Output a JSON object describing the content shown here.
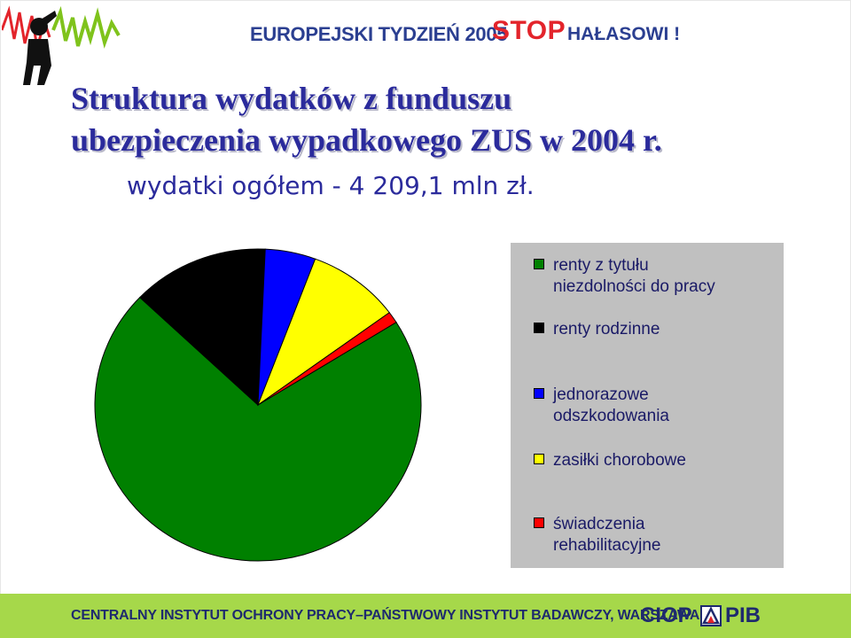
{
  "header": {
    "event_title": "EUROPEJSKI TYDZIEŃ 2005",
    "stop_word": "STOP",
    "halasowi": "HAŁASOWI !"
  },
  "title": {
    "line1": "Struktura wydatków z funduszu",
    "line2": "ubezpieczenia wypadkowego ZUS w 2004 r.",
    "subtitle": "wydatki ogółem - 4 209,1 mln zł."
  },
  "chart_data": {
    "type": "pie",
    "title": "Struktura wydatków z funduszu ubezpieczenia wypadkowego ZUS w 2004 r.",
    "subtitle": "wydatki ogółem - 4 209,1 mln zł.",
    "legend_position": "right",
    "slices": [
      {
        "label": "renty z tytułu\nniezdolności do pracy",
        "value": 71.0,
        "color": "#008000"
      },
      {
        "label": "renty rodzinne",
        "value": 13.6,
        "color": "#000000"
      },
      {
        "label": "jednorazowe\nodszkodowania",
        "value": 5.0,
        "color": "#0000ff"
      },
      {
        "label": "zasiłki chorobowe",
        "value": 9.2,
        "color": "#ffff00"
      },
      {
        "label": "świadczenia\nrehabilitacyjne",
        "value": 1.2,
        "color": "#ff0000"
      }
    ]
  },
  "footer": {
    "institute": "CENTRALNY INSTYTUT OCHRONY PRACY–PAŃSTWOWY INSTYTUT BADAWCZY, WARSZAWA",
    "logo_left": "CIOP",
    "logo_right": "PIB"
  }
}
